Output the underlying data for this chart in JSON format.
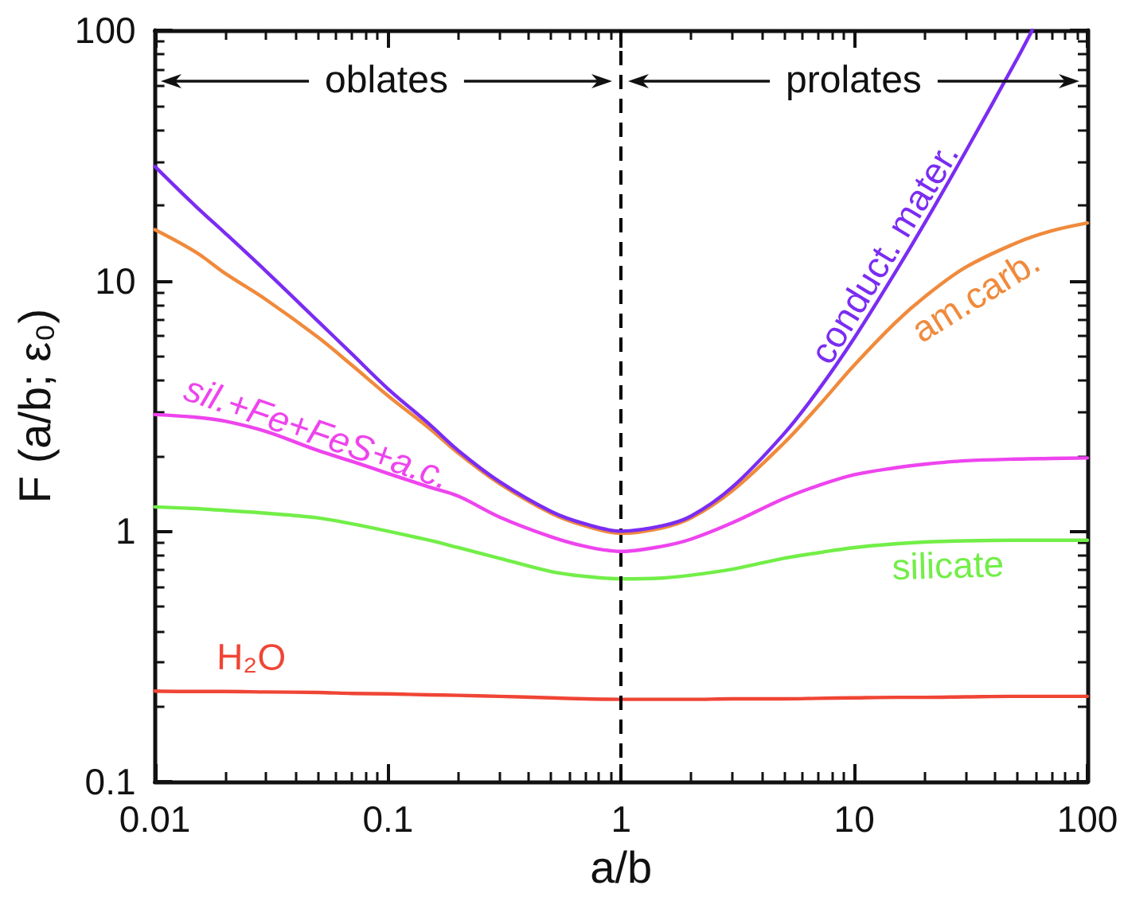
{
  "chart_data": {
    "type": "line",
    "xlabel": "a/b",
    "ylabel": "F (a/b; ε₀)",
    "log": "xy",
    "xlim": [
      0.01,
      100
    ],
    "ylim": [
      0.1,
      100
    ],
    "xticks": [
      0.01,
      0.1,
      1,
      10,
      100
    ],
    "yticks": [
      0.1,
      1,
      10,
      100
    ],
    "grid": false,
    "legend": false,
    "marker": "none",
    "line_style": "solid",
    "x": [
      0.01,
      0.015,
      0.02,
      0.03,
      0.05,
      0.07,
      0.1,
      0.15,
      0.2,
      0.3,
      0.5,
      0.7,
      1,
      1.5,
      2,
      3,
      5,
      7,
      10,
      15,
      20,
      30,
      50,
      70,
      100
    ],
    "series": [
      {
        "name": "conduct. mater.",
        "color": "#7b2cf2",
        "x": [
          0.01,
          0.015,
          0.02,
          0.03,
          0.05,
          0.07,
          0.1,
          0.15,
          0.2,
          0.3,
          0.5,
          0.7,
          1,
          1.5,
          2,
          3,
          5,
          7,
          10,
          15,
          20,
          30,
          50,
          58
        ],
        "values": [
          28.6,
          19.8,
          15.5,
          10.9,
          6.9,
          5.1,
          3.7,
          2.68,
          2.1,
          1.58,
          1.2,
          1.07,
          1.0,
          1.05,
          1.15,
          1.5,
          2.45,
          3.65,
          5.9,
          10.8,
          16.9,
          32.7,
          77,
          100
        ]
      },
      {
        "name": "am.carb.",
        "color": "#f08a3c",
        "values": [
          16.0,
          13.0,
          10.7,
          8.4,
          5.95,
          4.6,
          3.47,
          2.58,
          2.05,
          1.55,
          1.18,
          1.05,
          0.98,
          1.03,
          1.13,
          1.45,
          2.25,
          3.15,
          4.6,
          6.8,
          8.6,
          11.3,
          14.2,
          15.8,
          17.0
        ]
      },
      {
        "name": "sil.+Fe+FeS+a.c.",
        "color": "#ee44ee",
        "values": [
          2.92,
          2.85,
          2.75,
          2.5,
          2.1,
          1.9,
          1.7,
          1.5,
          1.38,
          1.14,
          0.95,
          0.87,
          0.83,
          0.87,
          0.93,
          1.08,
          1.35,
          1.52,
          1.68,
          1.79,
          1.85,
          1.91,
          1.94,
          1.95,
          1.96
        ]
      },
      {
        "name": "silicate",
        "color": "#72ee48",
        "values": [
          1.25,
          1.23,
          1.21,
          1.18,
          1.13,
          1.07,
          1.0,
          0.92,
          0.86,
          0.78,
          0.69,
          0.66,
          0.645,
          0.65,
          0.667,
          0.705,
          0.78,
          0.82,
          0.86,
          0.89,
          0.905,
          0.915,
          0.92,
          0.92,
          0.92
        ]
      },
      {
        "name": "H₂O",
        "color": "#f04535",
        "values": [
          0.23,
          0.229,
          0.229,
          0.228,
          0.227,
          0.225,
          0.224,
          0.222,
          0.221,
          0.219,
          0.216,
          0.214,
          0.213,
          0.213,
          0.213,
          0.214,
          0.214,
          0.215,
          0.216,
          0.217,
          0.217,
          0.218,
          0.219,
          0.219,
          0.219
        ]
      }
    ],
    "ref_lines": [
      {
        "axis": "x",
        "value": 1,
        "color": "#000000",
        "line_style": "dashed"
      }
    ],
    "annotations": [
      "oblates",
      "prolates"
    ]
  }
}
